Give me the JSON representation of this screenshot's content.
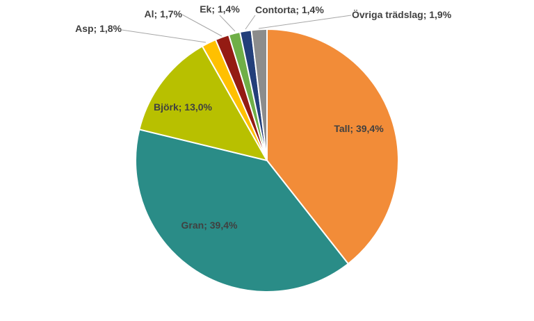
{
  "chart_data": {
    "type": "pie",
    "title": "",
    "slices": [
      {
        "label": "Tall; 39,4%",
        "value": 39.4,
        "color": "#F28C38"
      },
      {
        "label": "Gran; 39,4%",
        "value": 39.4,
        "color": "#2A8C87"
      },
      {
        "label": "Björk; 13,0%",
        "value": 13.0,
        "color": "#B8C000"
      },
      {
        "label": "Asp; 1,8%",
        "value": 1.8,
        "color": "#FFC000"
      },
      {
        "label": "Al; 1,7%",
        "value": 1.7,
        "color": "#941B13"
      },
      {
        "label": "Ek; 1,4%",
        "value": 1.4,
        "color": "#6FAF47"
      },
      {
        "label": "Contorta; 1,4%",
        "value": 1.4,
        "color": "#233F7A"
      },
      {
        "label": "Övriga trädslag; 1,9%",
        "value": 1.9,
        "color": "#8C8C8C"
      }
    ],
    "start": "12 o'clock",
    "direction": "clockwise",
    "legend": "none",
    "data_labels": true
  }
}
